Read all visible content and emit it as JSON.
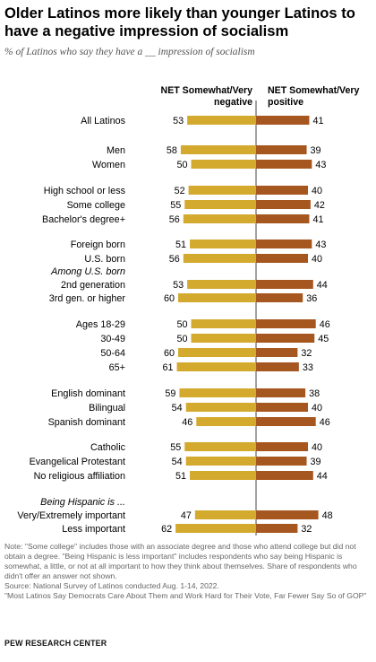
{
  "title": "Older Latinos more likely than younger Latinos to have a negative impression of socialism",
  "subtitle": "% of Latinos who say they have a __ impression of socialism",
  "chart_data": {
    "type": "bar",
    "layout": "diverging",
    "series": [
      {
        "name": "NET Somewhat/Very negative",
        "color": "#d4aa2e"
      },
      {
        "name": "NET Somewhat/Very positive",
        "color": "#a6561f"
      }
    ],
    "rows": [
      {
        "label": "All Latinos",
        "neg": 53,
        "pos": 41
      },
      {
        "label": "Men",
        "neg": 58,
        "pos": 39
      },
      {
        "label": "Women",
        "neg": 50,
        "pos": 43
      },
      {
        "label": "High school or less",
        "neg": 52,
        "pos": 40
      },
      {
        "label": "Some college",
        "neg": 55,
        "pos": 42
      },
      {
        "label": "Bachelor's degree+",
        "neg": 56,
        "pos": 41
      },
      {
        "label": "Foreign born",
        "neg": 51,
        "pos": 43
      },
      {
        "label": "U.S. born",
        "neg": 56,
        "pos": 40
      },
      {
        "label": "Among U.S. born",
        "italic": true
      },
      {
        "label": "2nd generation",
        "neg": 53,
        "pos": 44
      },
      {
        "label": "3rd gen. or higher",
        "neg": 60,
        "pos": 36
      },
      {
        "label": "Ages 18-29",
        "neg": 50,
        "pos": 46
      },
      {
        "label": "30-49",
        "neg": 50,
        "pos": 45
      },
      {
        "label": "50-64",
        "neg": 60,
        "pos": 32
      },
      {
        "label": "65+",
        "neg": 61,
        "pos": 33
      },
      {
        "label": "English dominant",
        "neg": 59,
        "pos": 38
      },
      {
        "label": "Bilingual",
        "neg": 54,
        "pos": 40
      },
      {
        "label": "Spanish dominant",
        "neg": 46,
        "pos": 46
      },
      {
        "label": "Catholic",
        "neg": 55,
        "pos": 40
      },
      {
        "label": "Evangelical Protestant",
        "neg": 54,
        "pos": 39
      },
      {
        "label": "No religious affiliation",
        "neg": 51,
        "pos": 44
      },
      {
        "label": "Being Hispanic is ...",
        "italic": true
      },
      {
        "label": "Very/Extremely important",
        "neg": 47,
        "pos": 48
      },
      {
        "label": "Less important",
        "neg": 62,
        "pos": 32
      }
    ]
  },
  "notes": [
    "Note: \"Some college\" includes those with an associate degree and those who attend college but did not obtain a degree. \"Being Hispanic is less important\" includes respondents who say being Hispanic is somewhat, a little, or not at all important to how they think about themselves. Share of respondents who didn't offer an answer not shown.",
    "Source: National Survey of Latinos conducted Aug. 1-14, 2022.",
    "\"Most Latinos Say Democrats Care About Them and Work Hard for Their Vote, Far Fewer Say So of GOP\""
  ],
  "brand": "PEW RESEARCH CENTER"
}
